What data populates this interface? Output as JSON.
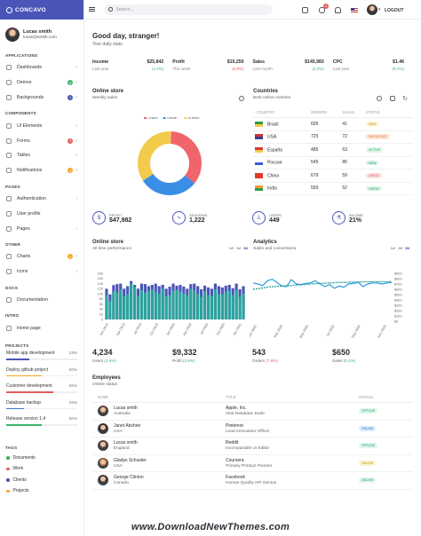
{
  "brand": {
    "name": "CONCAVO"
  },
  "user": {
    "name": "Lucas smith",
    "email": "lucas@smith.com"
  },
  "sidebar": {
    "sections": [
      {
        "title": "Applications",
        "items": [
          {
            "label": "Dashboards",
            "badge": "",
            "icon": "sliders-icon"
          },
          {
            "label": "Demos",
            "badge": "5",
            "badge_color": "#3ab36b",
            "icon": "grid-icon"
          },
          {
            "label": "Backgrounds",
            "badge": "1",
            "badge_color": "#4b55b8",
            "icon": "image-icon"
          }
        ]
      },
      {
        "title": "Components",
        "items": [
          {
            "label": "UI Elements",
            "badge": "",
            "icon": "box-icon"
          },
          {
            "label": "Forms",
            "badge": "2",
            "badge_color": "#e35d5d",
            "icon": "form-icon"
          },
          {
            "label": "Tables",
            "badge": "",
            "icon": "table-icon"
          },
          {
            "label": "Notifications",
            "badge": "3",
            "badge_color": "#f5a623",
            "icon": "bell-icon"
          }
        ]
      },
      {
        "title": "Pages",
        "items": [
          {
            "label": "Authentication",
            "badge": "",
            "icon": "lock-icon"
          },
          {
            "label": "User profile",
            "badge": "",
            "icon": "user-icon"
          },
          {
            "label": "Pages",
            "badge": "",
            "icon": "file-icon"
          }
        ]
      },
      {
        "title": "Other",
        "items": [
          {
            "label": "Charts",
            "badge": "4",
            "badge_color": "#f5a623",
            "icon": "pie-icon"
          },
          {
            "label": "Icons",
            "badge": "",
            "icon": "heart-icon"
          }
        ]
      },
      {
        "title": "Docs",
        "items": [
          {
            "label": "Documentation",
            "badge": "",
            "icon": "book-icon"
          }
        ]
      },
      {
        "title": "Intro",
        "items": [
          {
            "label": "Home page",
            "badge": "",
            "icon": "home-icon"
          }
        ]
      }
    ],
    "projects_title": "Projects",
    "projects": [
      {
        "label": "Mobile app development",
        "pct": "33%",
        "value": 33,
        "color": "#4b55b8"
      },
      {
        "label": "Deploy github project",
        "pct": "50%",
        "value": 50,
        "color": "#f5a623"
      },
      {
        "label": "Customer development",
        "pct": "66%",
        "value": 66,
        "color": "#e35d5d"
      },
      {
        "label": "Database backup",
        "pct": "25%",
        "value": 25,
        "color": "#3a7bd5"
      },
      {
        "label": "Release version 1.4",
        "pct": "50%",
        "value": 50,
        "color": "#3ab36b"
      }
    ],
    "tags_title": "Tags",
    "tags": [
      {
        "label": "Documents",
        "color": "#3ab36b"
      },
      {
        "label": "Work",
        "color": "#e35d5d"
      },
      {
        "label": "Clients",
        "color": "#4b55b8"
      },
      {
        "label": "Projects",
        "color": "#f5a623"
      }
    ]
  },
  "topbar": {
    "search_placeholder": "Search...",
    "notif_badges": [
      "3",
      "2"
    ],
    "logout": "LOGOUT"
  },
  "greeting": {
    "title": "Good day, stranger!",
    "subtitle": "Your daily stats"
  },
  "stats": [
    {
      "label": "Income",
      "value": "$25,842",
      "change": "(4.4%)",
      "period": "Last year",
      "trend": "up"
    },
    {
      "label": "Profit",
      "value": "$10,250",
      "change": "(5.8%)",
      "period": "This week",
      "trend": "down"
    },
    {
      "label": "Sales",
      "value": "$145,983",
      "change": "(2.2%)",
      "period": "Last month",
      "trend": "up"
    },
    {
      "label": "CPC",
      "value": "$1.46",
      "change": "(6.2%)",
      "period": "Last year",
      "trend": "up"
    }
  ],
  "online_store": {
    "title": "Online store",
    "subtitle": "Weekly sales",
    "chart_data": {
      "type": "pie",
      "categories": [
        "Online",
        "Offline",
        "In store"
      ],
      "values": [
        35,
        30,
        35
      ],
      "colors": [
        "#f0656b",
        "#3a8ee6",
        "#f2cb4c"
      ],
      "legend": "top"
    }
  },
  "countries": {
    "title": "Countries",
    "subtitle": "Best online markets",
    "headers": [
      "COUNTRY",
      "ORDERS",
      "SALES",
      "STATUS"
    ],
    "rows": [
      {
        "country": "Brasil",
        "orders": "605",
        "sales": "41",
        "status": "NEW",
        "status_bg": "#fdf3d0",
        "status_fg": "#c7951b",
        "flag": [
          "#2f9e44",
          "#f2cb4c"
        ]
      },
      {
        "country": "USA",
        "orders": "725",
        "sales": "72",
        "status": "IMPORTANT",
        "status_bg": "#fde4d6",
        "status_fg": "#e07b2b",
        "flag": [
          "#c33",
          "#3c3b8e"
        ]
      },
      {
        "country": "España",
        "orders": "485",
        "sales": "63",
        "status": "ACTIVE",
        "status_bg": "#def5ea",
        "status_fg": "#27a663",
        "flag": [
          "#d33",
          "#f2cb4c"
        ]
      },
      {
        "country": "Россия",
        "orders": "545",
        "sales": "85",
        "status": "NEW",
        "status_bg": "#dbf2ea",
        "status_fg": "#27a663",
        "flag": [
          "#fff",
          "#3a5ad5"
        ]
      },
      {
        "country": "China",
        "orders": "679",
        "sales": "59",
        "status": "GREAT",
        "status_bg": "#fbe0e0",
        "status_fg": "#e35d5d",
        "flag": [
          "#e23b2b",
          "#e23b2b"
        ]
      },
      {
        "country": "India",
        "orders": "559",
        "sales": "52",
        "status": "GREAT",
        "status_bg": "#def5ea",
        "status_fg": "#27a663",
        "flag": [
          "#f59a3a",
          "#2f9e44"
        ]
      }
    ]
  },
  "kpis": [
    {
      "label": "PROFIT",
      "value": "$47,982",
      "icon": "dollar-icon"
    },
    {
      "label": "SESSIONS",
      "value": "1,222",
      "icon": "activity-icon"
    },
    {
      "label": "USERS",
      "value": "449",
      "icon": "users-icon"
    },
    {
      "label": "INCOME",
      "value": "21%",
      "icon": "flask-icon"
    }
  ],
  "performance": {
    "title": "Online store",
    "subtitle": "All time performance",
    "periods": [
      "1W",
      "1M",
      "3M"
    ],
    "chart_data": {
      "type": "bar",
      "categories": [
        "Jan 2019",
        "",
        "",
        "",
        "",
        "",
        "",
        "",
        "Jul 2019",
        "",
        "",
        "",
        "",
        "",
        "",
        "",
        "Jan 2020",
        "",
        "",
        "",
        "",
        "",
        "",
        "",
        "Jul 2020",
        "",
        "",
        "",
        "",
        "",
        "",
        "",
        "Jan 2021",
        "",
        "",
        "",
        "",
        "",
        "",
        ""
      ],
      "tick_labels": [
        "Jan 2019",
        "Apr 2019",
        "Jul 2019",
        "Oct 2019",
        "Jan 2020",
        "Apr 2020",
        "Jul 2020",
        "Oct 2020",
        "Jan 2021"
      ],
      "series": [
        {
          "values": [
            95,
            72,
            110,
            105,
            118,
            90,
            100,
            140,
            128,
            92,
            115,
            105,
            112,
            117,
            108,
            100,
            120,
            90,
            95,
            112,
            115,
            108,
            102,
            95,
            120,
            115,
            100,
            88,
            110,
            95,
            92,
            118,
            100,
            98,
            108,
            112,
            95,
            115,
            88,
            102
          ],
          "color": "#2aa39b"
        },
        {
          "values": [
            120,
            98,
            134,
            138,
            140,
            120,
            130,
            150,
            135,
            120,
            140,
            138,
            130,
            135,
            140,
            130,
            135,
            120,
            128,
            140,
            132,
            135,
            128,
            120,
            138,
            140,
            130,
            118,
            132,
            125,
            120,
            140,
            130,
            125,
            132,
            135,
            122,
            140,
            118,
            130
          ],
          "color": "#4b55b8"
        }
      ],
      "ylim": [
        0,
        180
      ],
      "yticks": [
        0,
        20,
        40,
        60,
        80,
        100,
        120,
        140,
        160,
        180
      ]
    }
  },
  "analytics": {
    "title": "Analytics",
    "subtitle": "Sales and conversions",
    "periods": [
      "1W",
      "1M",
      "3M"
    ],
    "chart_data": {
      "type": "line",
      "tick_labels": [
        "Jan 2020",
        "Mar 2020",
        "May 2020",
        "Jul 2020",
        "Sep 2020",
        "Nov 2020"
      ],
      "series": [
        {
          "values": [
            720,
            700,
            670,
            760,
            790,
            730,
            660,
            650,
            780,
            700,
            690,
            710,
            720,
            760,
            700,
            650,
            690,
            620,
            660,
            640,
            700,
            710,
            730,
            650,
            700,
            720,
            720,
            700,
            720,
            730
          ],
          "color": "#2a9be0"
        },
        {
          "values": [
            600,
            610,
            625,
            640,
            650,
            655,
            660,
            665,
            670,
            680,
            685,
            690,
            700,
            705,
            710,
            715,
            720,
            725,
            728,
            730,
            732,
            735,
            738,
            740,
            741,
            742,
            742,
            743,
            743,
            744
          ],
          "color": "#2aa39b"
        }
      ],
      "ylim": [
        0,
        900
      ],
      "yticks": [
        "$0",
        "$100",
        "$200",
        "$300",
        "$400",
        "$500",
        "$600",
        "$700",
        "$800",
        "$900"
      ]
    }
  },
  "bignums": [
    {
      "value": "4,234",
      "label": "Users",
      "change": "(4.6%)",
      "trend": "up"
    },
    {
      "value": "$9,332",
      "label": "Profit",
      "change": "(2.9%)",
      "trend": "up"
    },
    {
      "value": "543",
      "label": "Orders",
      "change": "(7.6%)",
      "trend": "down"
    },
    {
      "value": "$650",
      "label": "Sales",
      "change": "(5.2%)",
      "trend": "up"
    }
  ],
  "employees": {
    "title": "Employees",
    "subtitle": "Online status",
    "headers": [
      "NAME",
      "TITLE",
      "STATUS"
    ],
    "rows": [
      {
        "name": "Lucas smith",
        "country": "Australia",
        "company": "Apple, Inc.",
        "role": "Vital Database Dude",
        "status": "OFFLINE",
        "status_bg": "#def5ea",
        "status_fg": "#27a663",
        "avatar": "#6a4a3a"
      },
      {
        "name": "Janet Abshire",
        "country": "USA",
        "company": "Pinterest",
        "role": "Lead Innovation Officer",
        "status": "ONLINE",
        "status_bg": "#d8ecfb",
        "status_fg": "#2a7bd5",
        "avatar": "#3a2a25"
      },
      {
        "name": "Lucas smith",
        "country": "England",
        "company": "Reddit",
        "role": "Incomparable UI Editor",
        "status": "OFFLINE",
        "status_bg": "#def5ea",
        "status_fg": "#27a663",
        "avatar": "#6a4a3a"
      },
      {
        "name": "Gladys Schuster",
        "country": "USA",
        "company": "Coursera",
        "role": "Primary Product Pioneer",
        "status": "ONLINE",
        "status_bg": "#fdf3d0",
        "status_fg": "#c7951b",
        "avatar": "#b56a3a"
      },
      {
        "name": "George Clinton",
        "country": "Canada",
        "company": "Facebook",
        "role": "Human Quality API Genius",
        "status": "ONLINE",
        "status_bg": "#def5ea",
        "status_fg": "#27a663",
        "avatar": "#4a3a30"
      }
    ]
  },
  "watermark": "www.DownloadNewThemes.com"
}
